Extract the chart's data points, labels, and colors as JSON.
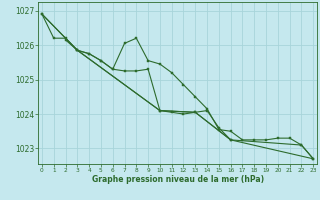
{
  "title": "Graphe pression niveau de la mer (hPa)",
  "background_color": "#c5e8ee",
  "grid_color": "#a8d4da",
  "line_color": "#2d6b2d",
  "x_ticks": [
    0,
    1,
    2,
    3,
    4,
    5,
    6,
    7,
    8,
    9,
    10,
    11,
    12,
    13,
    14,
    15,
    16,
    17,
    18,
    19,
    20,
    21,
    22,
    23
  ],
  "y_ticks": [
    1023,
    1024,
    1025,
    1026,
    1027
  ],
  "ylim": [
    1022.55,
    1027.25
  ],
  "xlim": [
    -0.3,
    23.3
  ],
  "series": {
    "wavy1": {
      "x": [
        0,
        1,
        2,
        3,
        4,
        5,
        6,
        7,
        8,
        9,
        10,
        11,
        12,
        13,
        14,
        15,
        16,
        17,
        18,
        19,
        20,
        21,
        22,
        23
      ],
      "y": [
        1026.9,
        1026.2,
        1026.2,
        1025.85,
        1025.75,
        1025.55,
        1025.3,
        1026.05,
        1026.2,
        1025.55,
        1025.45,
        1025.2,
        1024.85,
        1024.5,
        1024.15,
        1023.55,
        1023.5,
        1023.25,
        1023.25,
        1023.25,
        1023.3,
        1023.3,
        1023.1,
        1022.7
      ]
    },
    "wavy2": {
      "x": [
        2,
        3,
        4,
        5,
        6,
        7,
        8,
        9,
        10,
        11,
        12,
        13,
        14,
        15,
        16
      ],
      "y": [
        1026.15,
        1025.85,
        1025.75,
        1025.55,
        1025.3,
        1025.25,
        1025.25,
        1025.3,
        1024.1,
        1024.05,
        1024.0,
        1024.05,
        1024.1,
        1023.6,
        1023.25
      ]
    },
    "straight1": {
      "x": [
        0,
        3,
        10,
        13,
        16,
        22,
        23
      ],
      "y": [
        1026.9,
        1025.85,
        1024.1,
        1024.05,
        1023.25,
        1023.1,
        1022.7
      ]
    },
    "straight2": {
      "x": [
        0,
        3,
        10,
        13,
        16,
        23
      ],
      "y": [
        1026.9,
        1025.85,
        1024.1,
        1024.05,
        1023.25,
        1022.7
      ]
    }
  }
}
